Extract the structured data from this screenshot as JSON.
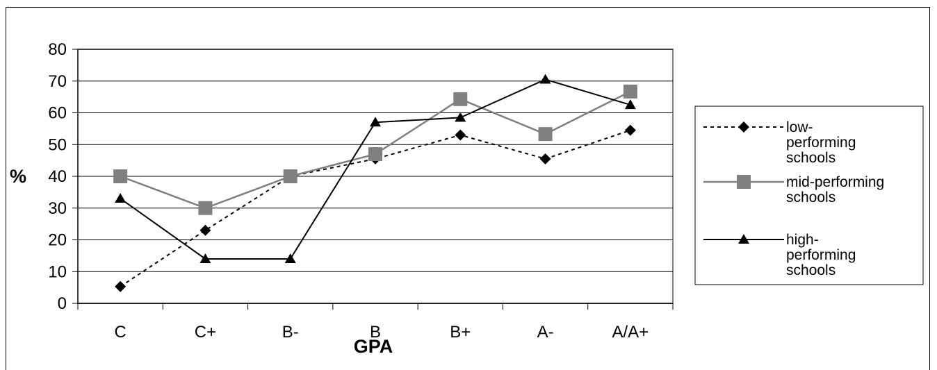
{
  "chart_data": {
    "type": "line",
    "categories": [
      "C",
      "C+",
      "B-",
      "B",
      "B+",
      "A-",
      "A/A+"
    ],
    "xlabel": "GPA",
    "ylabel": "%",
    "ylim": [
      0,
      80
    ],
    "yticks": [
      0,
      10,
      20,
      30,
      40,
      50,
      60,
      70,
      80
    ],
    "grid": true,
    "legend_position": "right",
    "series": [
      {
        "name": "low-performing schools",
        "legend_lines": [
          "low-",
          "performing",
          "schools"
        ],
        "values": [
          5.3,
          23,
          40,
          45.5,
          53,
          45.5,
          54.5
        ],
        "color": "#000000",
        "line_style": "dotted",
        "marker": "diamond"
      },
      {
        "name": "mid-performing schools",
        "legend_lines": [
          "mid-performing",
          "schools"
        ],
        "values": [
          40,
          30,
          40,
          47,
          64.3,
          53.3,
          66.7
        ],
        "color": "#808080",
        "line_style": "solid",
        "marker": "square"
      },
      {
        "name": "high-performing schools",
        "legend_lines": [
          "high-",
          "performing",
          "schools"
        ],
        "values": [
          33,
          14,
          14,
          57,
          58.5,
          70.5,
          62.5
        ],
        "color": "#000000",
        "line_style": "solid",
        "marker": "triangle"
      }
    ]
  }
}
